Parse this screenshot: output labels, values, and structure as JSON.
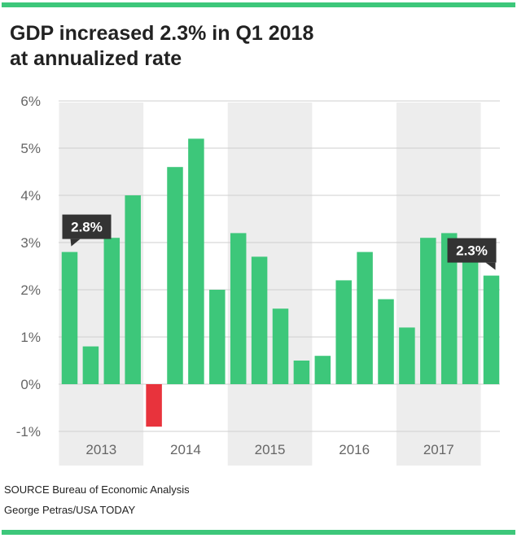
{
  "title_lines": [
    "GDP increased 2.3% in Q1 2018",
    "at annualized rate"
  ],
  "source": "SOURCE Bureau of Economic Analysis",
  "credit": "George Petras/USA TODAY",
  "colors": {
    "positive": "#3dc77a",
    "negative": "#e8333c",
    "band": "#ededed",
    "grid": "#cfcfcf",
    "callout": "#333333",
    "accent_rule": "#3dc77a"
  },
  "chart_data": {
    "type": "bar",
    "title": "GDP increased 2.3% in Q1 2018 at annualized rate",
    "ylim": [
      -1,
      6
    ],
    "y_ticks": [
      "-1%",
      "0%",
      "1%",
      "2%",
      "3%",
      "4%",
      "5%",
      "6%"
    ],
    "y_tick_values": [
      -1,
      0,
      1,
      2,
      3,
      4,
      5,
      6
    ],
    "year_labels": [
      "2013",
      "2014",
      "2015",
      "2016",
      "2017"
    ],
    "grid": true,
    "categories": [
      "2013 Q1",
      "2013 Q2",
      "2013 Q3",
      "2013 Q4",
      "2014 Q1",
      "2014 Q2",
      "2014 Q3",
      "2014 Q4",
      "2015 Q1",
      "2015 Q2",
      "2015 Q3",
      "2015 Q4",
      "2016 Q1",
      "2016 Q2",
      "2016 Q3",
      "2016 Q4",
      "2017 Q1",
      "2017 Q2",
      "2017 Q3",
      "2017 Q4",
      "2018 Q1"
    ],
    "values": [
      2.8,
      0.8,
      3.1,
      4.0,
      -0.9,
      4.6,
      5.2,
      2.0,
      3.2,
      2.7,
      1.6,
      0.5,
      0.6,
      2.2,
      2.8,
      1.8,
      1.2,
      3.1,
      3.2,
      2.9,
      2.3
    ],
    "annotations": [
      {
        "text": "2.8%",
        "index": 0
      },
      {
        "text": "2.3%",
        "index": 20
      }
    ]
  }
}
